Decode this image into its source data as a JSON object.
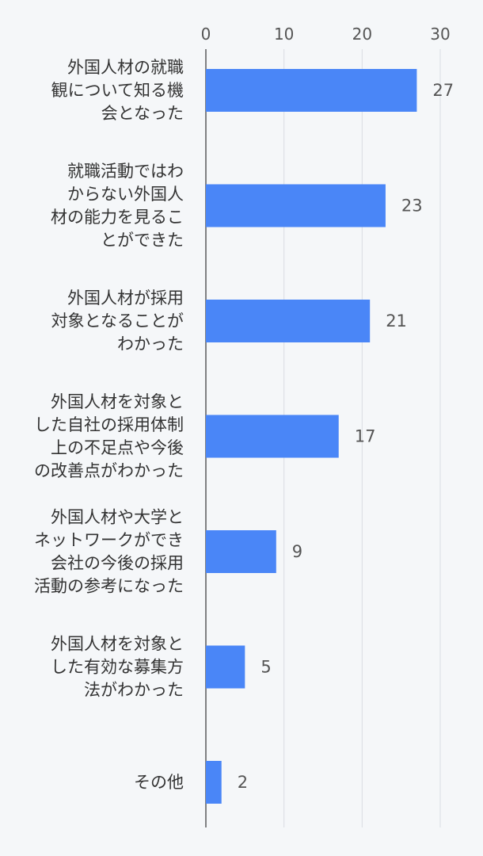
{
  "chart_data": {
    "type": "bar",
    "orientation": "horizontal",
    "categories": [
      [
        "外国人材の就職",
        "観について知る機",
        "会となった"
      ],
      [
        "就職活動ではわ",
        "からない外国人",
        "材の能力を見るこ",
        "とができた"
      ],
      [
        "外国人材が採用",
        "対象となることが",
        "わかった"
      ],
      [
        "外国人材を対象と",
        "した自社の採用体制",
        "上の不足点や今後",
        "の改善点がわかった"
      ],
      [
        "外国人材や大学と",
        "ネットワークができ",
        "会社の今後の採用",
        "活動の参考になった"
      ],
      [
        "外国人材を対象と",
        "した有効な募集方",
        "法がわかった"
      ],
      [
        "その他"
      ]
    ],
    "values": [
      27,
      23,
      21,
      17,
      9,
      5,
      2
    ],
    "value_labels": [
      "27",
      "23",
      "21",
      "17",
      "9",
      "5",
      "2"
    ],
    "xlim": [
      0,
      30
    ],
    "xticks": [
      0,
      10,
      20,
      30
    ],
    "xtick_labels": [
      "0",
      "10",
      "20",
      "30"
    ],
    "axis_position": "top",
    "grid": true,
    "bar_color": "#4a86f7",
    "grid_color": "#d9dde2",
    "axis_color": "#333333"
  }
}
